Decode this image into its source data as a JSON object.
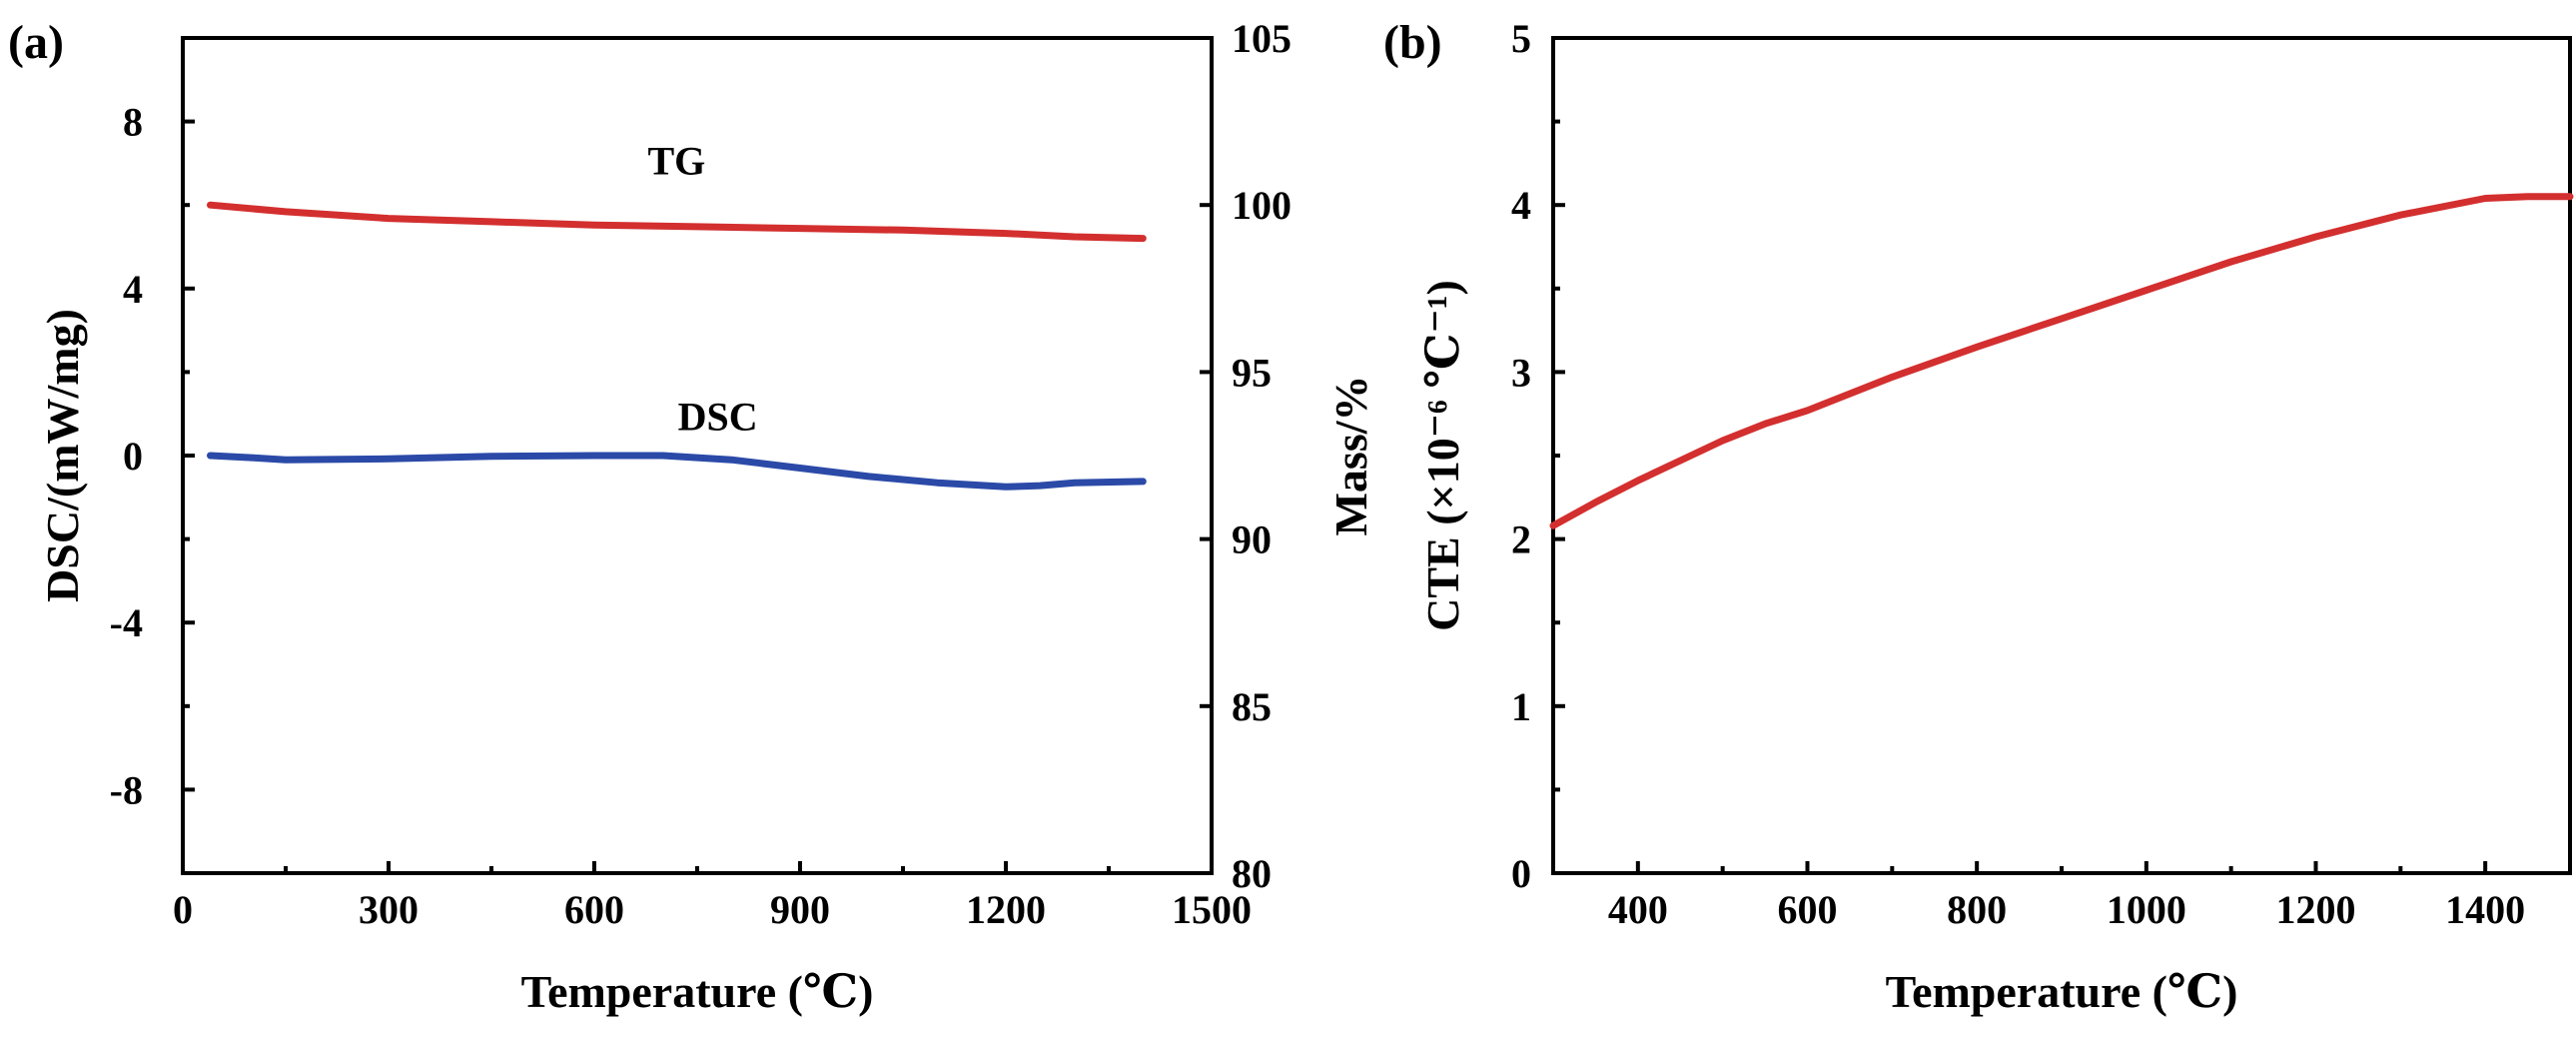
{
  "colors": {
    "tg": "#d32f2f",
    "dsc": "#2b4aa8",
    "cte": "#d32f2f"
  },
  "chart_data": [
    {
      "type": "line",
      "panel_label": "(a)",
      "xlabel": "Temperature (℃)",
      "ylabel_left": "DSC/(mW/mg)",
      "ylabel_right": "Mass/%",
      "xlim": [
        0,
        1500
      ],
      "ylim_left": [
        -10,
        10
      ],
      "ylim_right": [
        80,
        105
      ],
      "xticks": [
        0,
        300,
        600,
        900,
        1200,
        1500
      ],
      "yticks_left": [
        -8,
        -4,
        0,
        4,
        8
      ],
      "yticks_right": [
        80,
        85,
        90,
        95,
        100,
        105
      ],
      "series": [
        {
          "name": "TG",
          "axis": "right",
          "x": [
            40,
            150,
            300,
            450,
            600,
            750,
            900,
            1050,
            1200,
            1300,
            1400
          ],
          "y": [
            100.0,
            99.8,
            99.6,
            99.5,
            99.4,
            99.35,
            99.3,
            99.25,
            99.15,
            99.05,
            99.0
          ]
        },
        {
          "name": "DSC",
          "axis": "left",
          "x": [
            40,
            100,
            150,
            300,
            450,
            600,
            700,
            800,
            900,
            1000,
            1100,
            1200,
            1250,
            1300,
            1400
          ],
          "y": [
            0.0,
            -0.05,
            -0.1,
            -0.08,
            -0.02,
            0.0,
            0.0,
            -0.1,
            -0.3,
            -0.5,
            -0.65,
            -0.75,
            -0.72,
            -0.65,
            -0.62
          ]
        }
      ],
      "annotations": [
        {
          "text": "TG",
          "x": 720,
          "y_right": 100.8
        },
        {
          "text": "DSC",
          "x": 780,
          "y_left": 0.8
        }
      ]
    },
    {
      "type": "line",
      "panel_label": "(b)",
      "xlabel": "Temperature (℃)",
      "ylabel": "CTE (×10⁻⁶ ℃⁻¹)",
      "xlim": [
        300,
        1500
      ],
      "ylim": [
        0,
        5
      ],
      "xticks": [
        400,
        600,
        800,
        1000,
        1200,
        1400
      ],
      "yticks": [
        0,
        1,
        2,
        3,
        4,
        5
      ],
      "series": [
        {
          "name": "CTE",
          "x": [
            300,
            350,
            400,
            450,
            500,
            550,
            600,
            650,
            700,
            800,
            900,
            1000,
            1100,
            1200,
            1300,
            1400,
            1450,
            1500
          ],
          "y": [
            2.08,
            2.22,
            2.35,
            2.47,
            2.59,
            2.69,
            2.77,
            2.87,
            2.97,
            3.15,
            3.32,
            3.49,
            3.66,
            3.81,
            3.94,
            4.04,
            4.05,
            4.05
          ]
        }
      ]
    }
  ]
}
